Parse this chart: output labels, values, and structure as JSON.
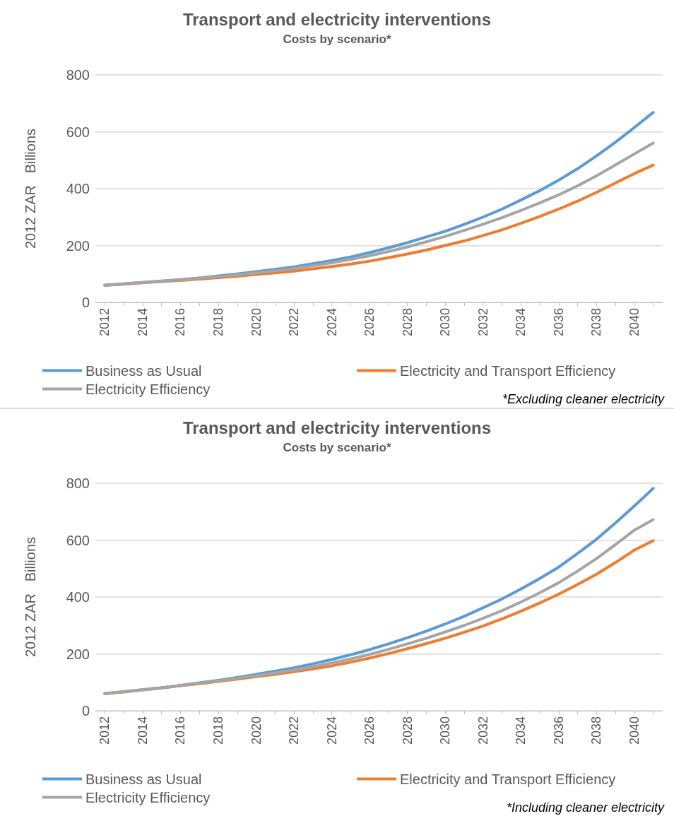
{
  "chart_data": [
    {
      "type": "line",
      "title": "Transport and electricity interventions",
      "subtitle": "Costs by scenario*",
      "ylabel": "2012 ZAR   Billions",
      "annotations": [
        "*Excluding cleaner electricity"
      ],
      "categories": [
        "2012",
        null,
        "2014",
        null,
        "2016",
        null,
        "2018",
        null,
        "2020",
        null,
        "2022",
        null,
        "2024",
        null,
        "2026",
        null,
        "2028",
        null,
        "2030",
        null,
        "2032",
        null,
        "2034",
        null,
        "2036",
        null,
        "2038",
        null,
        "2040",
        null
      ],
      "ylim": [
        0,
        800
      ],
      "yticks": [
        0,
        200,
        400,
        600,
        800
      ],
      "grid": "y",
      "legend": "bottom",
      "marker": "none",
      "line_style": "solid",
      "series": [
        {
          "name": "Business as Usual",
          "color": "#5b9bd5",
          "values": [
            60,
            65,
            70,
            75,
            80,
            86,
            93,
            100,
            108,
            116,
            125,
            136,
            147,
            160,
            175,
            192,
            210,
            230,
            250,
            274,
            300,
            328,
            360,
            393,
            430,
            470,
            515,
            563,
            615,
            668
          ]
        },
        {
          "name": "Electricity and Transport Efficiency",
          "color": "#ed7d31",
          "values": [
            60,
            64,
            69,
            73,
            77,
            82,
            87,
            92,
            98,
            104,
            110,
            118,
            126,
            135,
            145,
            157,
            170,
            184,
            200,
            216,
            235,
            255,
            278,
            302,
            328,
            356,
            387,
            420,
            453,
            483
          ]
        },
        {
          "name": "Electricity Efficiency",
          "color": "#a5a5a5",
          "values": [
            60,
            65,
            70,
            74,
            79,
            85,
            91,
            97,
            104,
            111,
            119,
            129,
            139,
            151,
            164,
            179,
            195,
            213,
            232,
            253,
            275,
            298,
            323,
            350,
            378,
            410,
            445,
            483,
            522,
            560
          ]
        }
      ]
    },
    {
      "type": "line",
      "title": "Transport and electricity interventions",
      "subtitle": "Costs by scenario*",
      "ylabel": "2012 ZAR   Billions",
      "annotations": [
        "*Including cleaner electricity"
      ],
      "categories": [
        "2012",
        null,
        "2014",
        null,
        "2016",
        null,
        "2018",
        null,
        "2020",
        null,
        "2022",
        null,
        "2024",
        null,
        "2026",
        null,
        "2028",
        null,
        "2030",
        null,
        "2032",
        null,
        "2034",
        null,
        "2036",
        null,
        "2038",
        null,
        "2040",
        null
      ],
      "ylim": [
        0,
        800
      ],
      "yticks": [
        0,
        200,
        400,
        600,
        800
      ],
      "grid": "y",
      "legend": "bottom",
      "marker": "none",
      "line_style": "solid",
      "series": [
        {
          "name": "Business as Usual",
          "color": "#5b9bd5",
          "values": [
            60,
            67,
            74,
            81,
            89,
            98,
            107,
            117,
            128,
            139,
            151,
            165,
            180,
            197,
            215,
            235,
            257,
            280,
            305,
            332,
            362,
            393,
            428,
            465,
            505,
            553,
            603,
            660,
            720,
            782
          ]
        },
        {
          "name": "Electricity and Transport Efficiency",
          "color": "#ed7d31",
          "values": [
            60,
            66,
            73,
            80,
            88,
            95,
            103,
            111,
            120,
            128,
            137,
            147,
            158,
            171,
            185,
            201,
            218,
            236,
            255,
            276,
            298,
            323,
            350,
            379,
            410,
            444,
            480,
            521,
            565,
            598
          ]
        },
        {
          "name": "Electricity Efficiency",
          "color": "#a5a5a5",
          "values": [
            60,
            67,
            74,
            81,
            89,
            97,
            105,
            114,
            123,
            133,
            143,
            155,
            168,
            182,
            198,
            216,
            235,
            255,
            277,
            300,
            325,
            352,
            382,
            415,
            450,
            491,
            535,
            584,
            635,
            672
          ]
        }
      ]
    }
  ]
}
